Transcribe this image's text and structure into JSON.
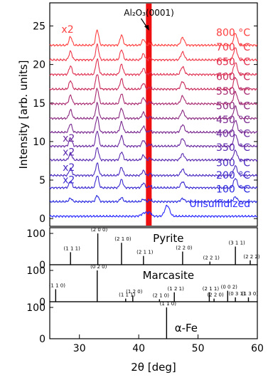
{
  "chart_data": [
    {
      "type": "line",
      "title": "",
      "ylabel": "Intensity [arb. units]",
      "xlim": [
        25,
        60
      ],
      "ylim": [
        -1,
        28
      ],
      "yticks": [
        0,
        5,
        10,
        15,
        20,
        25
      ],
      "annotation": {
        "text": "Al₂O₃(0001)",
        "arrow_x": 42.0,
        "peak_x": 41.7
      },
      "peaks": [
        {
          "x": 28.5,
          "h": 0.5,
          "w": 0.25
        },
        {
          "x": 33.0,
          "h": 0.9,
          "w": 0.25
        },
        {
          "x": 37.1,
          "h": 0.6,
          "w": 0.25
        },
        {
          "x": 40.8,
          "h": 0.35,
          "w": 0.25
        },
        {
          "x": 47.4,
          "h": 0.45,
          "w": 0.3
        },
        {
          "x": 56.3,
          "h": 0.7,
          "w": 0.3
        }
      ],
      "series": [
        {
          "name": "Unsulfidized",
          "offset": 0.3,
          "color": "#2828ff",
          "feFe": true
        },
        {
          "name": "100 °C",
          "offset": 2.2,
          "color": "#2a2ae0",
          "scale": 0.4
        },
        {
          "name": "200 °C",
          "offset": 4.0,
          "color": "#3a2ad0",
          "scale": 0.8,
          "x2": "x2"
        },
        {
          "name": "300 °C",
          "offset": 5.6,
          "color": "#4a2ac0",
          "scale": 0.8,
          "x2": "x2"
        },
        {
          "name": "350 °C",
          "offset": 7.6,
          "color": "#5a2ab0",
          "scale": 0.8,
          "x2": "x2"
        },
        {
          "name": "400 °C",
          "offset": 9.4,
          "color": "#6a2aa0",
          "scale": 1.0,
          "x2": "x2"
        },
        {
          "name": "450 °C",
          "offset": 11.2,
          "color": "#7a2a90",
          "scale": 1.0
        },
        {
          "name": "500 °C",
          "offset": 13.0,
          "color": "#8a2a80",
          "scale": 1.0
        },
        {
          "name": "550 °C",
          "offset": 14.9,
          "color": "#a82a70",
          "scale": 1.0
        },
        {
          "name": "600 °C",
          "offset": 16.8,
          "color": "#c82a5a",
          "scale": 1.0
        },
        {
          "name": "650 °C",
          "offset": 18.7,
          "color": "#e03050",
          "scale": 1.0
        },
        {
          "name": "700 °C",
          "offset": 20.6,
          "color": "#f03848",
          "scale": 1.0
        },
        {
          "name": "800 °C",
          "offset": 22.5,
          "color": "#ff4040",
          "scale": 1.0,
          "x2": "x2"
        }
      ]
    },
    {
      "type": "bar",
      "title": "Pyrite",
      "ylim": [
        0,
        100
      ],
      "yticks": [
        0,
        100
      ],
      "ticks_text": [
        "0",
        "100"
      ],
      "peaks": [
        {
          "x": 28.5,
          "y": 40,
          "hkl": "(1 1 1)"
        },
        {
          "x": 33.1,
          "y": 100,
          "hkl": "(2 0 0)"
        },
        {
          "x": 37.1,
          "y": 70,
          "hkl": "(2 1 0)"
        },
        {
          "x": 40.8,
          "y": 28,
          "hkl": "(2 1 1)"
        },
        {
          "x": 47.4,
          "y": 42,
          "hkl": "(2 2 0)"
        },
        {
          "x": 52.0,
          "y": 10,
          "hkl": "(2 2 1)"
        },
        {
          "x": 56.3,
          "y": 58,
          "hkl": "(3 1 1)"
        },
        {
          "x": 58.8,
          "y": 14,
          "hkl": "(2 2 2)"
        }
      ]
    },
    {
      "type": "bar",
      "title": "Marcasite",
      "ylim": [
        0,
        100
      ],
      "yticks": [
        0,
        100
      ],
      "ticks_text": [
        "0",
        "100"
      ],
      "peaks": [
        {
          "x": 26.0,
          "y": 40,
          "hkl": "(1 1 0)"
        },
        {
          "x": 33.0,
          "y": 100,
          "hkl": "(0 2 0)"
        },
        {
          "x": 37.8,
          "y": 10,
          "hkl": "(1 1 1)"
        },
        {
          "x": 39.0,
          "y": 20,
          "hkl": "(1 2 0)"
        },
        {
          "x": 43.5,
          "y": 8,
          "hkl": "(2 1 0)"
        },
        {
          "x": 46.0,
          "y": 30,
          "hkl": "(1 2 1)"
        },
        {
          "x": 51.9,
          "y": 30,
          "hkl": "(2 1 1)"
        },
        {
          "x": 52.7,
          "y": 10,
          "hkl": "(2 2 0)"
        },
        {
          "x": 55.0,
          "y": 35,
          "hkl": "(0 0 2)"
        },
        {
          "x": 56.3,
          "y": 14,
          "hkl": "(0 3 1)"
        },
        {
          "x": 58.5,
          "y": 14,
          "hkl": "(1 3 0)"
        }
      ]
    },
    {
      "type": "bar",
      "title": "α-Fe",
      "xlabel": "2θ [deg]",
      "xticks": [
        30,
        40,
        50,
        60
      ],
      "ylim": [
        0,
        100
      ],
      "yticks": [
        0,
        100
      ],
      "ticks_text": [
        "0",
        "100"
      ],
      "peaks": [
        {
          "x": 44.7,
          "y": 100,
          "hkl": "(1 1 0)"
        }
      ]
    }
  ]
}
